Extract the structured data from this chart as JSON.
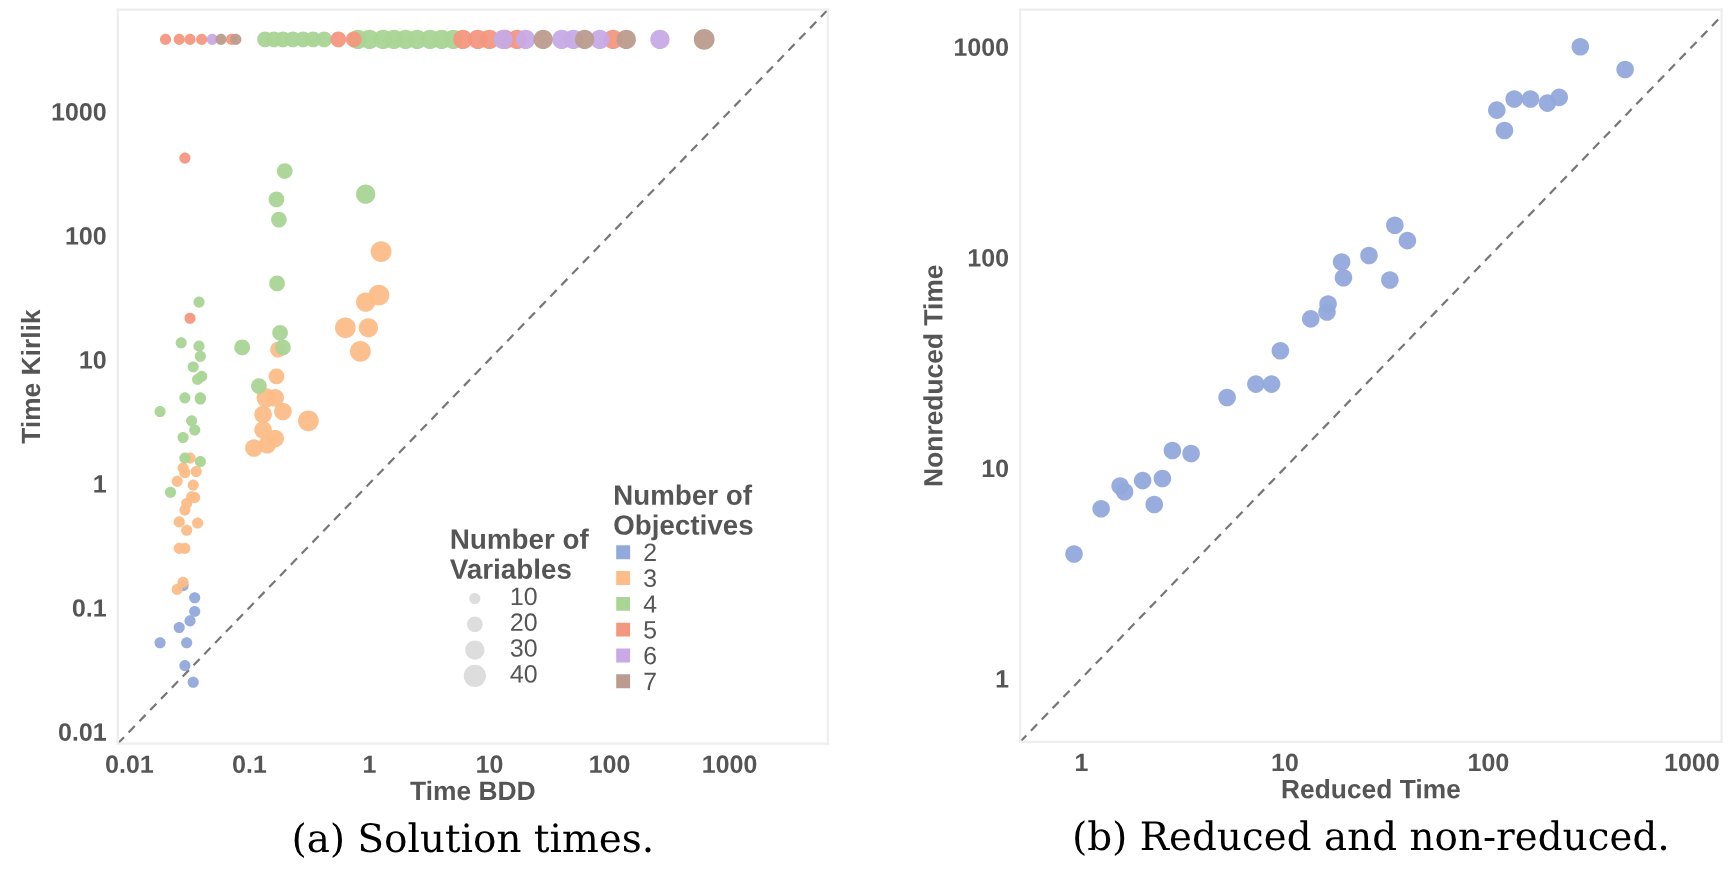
{
  "chart_data": [
    {
      "type": "bubble",
      "title": "(a) Solution times.",
      "xlabel": "Time BDD",
      "ylabel": "Time Kirlik",
      "log": "xy",
      "xlim": [
        0.008,
        6600
      ],
      "ylim": [
        0.008,
        6600
      ],
      "xticks": [
        0.01,
        0.1,
        1,
        10,
        100,
        1000
      ],
      "yticks": [
        0.01,
        0.1,
        1,
        10,
        100,
        1000
      ],
      "marker": "circle",
      "legend": "bottom right",
      "legend_title": "Number of Objectives",
      "size_legend": [
        10,
        20,
        30,
        40
      ],
      "annotations": [
        "Number of Variables"
      ],
      "series": [
        {
          "name": "2",
          "color": "#92a9db",
          "x": [
            0.018,
            0.026,
            0.028,
            0.03,
            0.029,
            0.034,
            0.032,
            0.035,
            0.035
          ],
          "values": [
            0.052,
            0.069,
            0.15,
            0.052,
            0.034,
            0.025,
            0.078,
            0.093,
            0.12
          ],
          "sizes": [
            10,
            10,
            10,
            10,
            10,
            10,
            10,
            10,
            10
          ]
        },
        {
          "name": "3",
          "color": "#fcbd88",
          "x": [
            0.025,
            0.028,
            0.026,
            0.029,
            0.03,
            0.026,
            0.037,
            0.029,
            0.03,
            0.033,
            0.034,
            0.035,
            0.025,
            0.028,
            0.029,
            0.032,
            0.036,
            0.109,
            0.13,
            0.13,
            0.138,
            0.164,
            0.164,
            0.141,
            0.19,
            0.31,
            0.168,
            0.173,
            0.63,
            0.98,
            0.84,
            0.93,
            1.2,
            1.25
          ],
          "values": [
            0.14,
            0.16,
            0.3,
            0.3,
            0.42,
            0.49,
            0.48,
            0.61,
            0.69,
            0.78,
            0.97,
            0.77,
            1.04,
            1.33,
            1.22,
            1.6,
            1.25,
            1.93,
            2.7,
            3.6,
            4.9,
            4.9,
            2.3,
            2.05,
            3.8,
            3.2,
            7.3,
            12,
            18,
            18,
            11.6,
            29,
            33,
            74
          ],
          "sizes": [
            10,
            10,
            10,
            10,
            10,
            10,
            10,
            10,
            10,
            10,
            10,
            10,
            10,
            10,
            10,
            10,
            10,
            25,
            25,
            25,
            30,
            25,
            25,
            25,
            25,
            35,
            20,
            20,
            35,
            30,
            35,
            30,
            35,
            35
          ]
        },
        {
          "name": "4",
          "color": "#a9d595",
          "x": [
            0.038,
            0.027,
            0.038,
            0.039,
            0.034,
            0.04,
            0.037,
            0.029,
            0.039,
            0.039,
            0.018,
            0.033,
            0.035,
            0.028,
            0.029,
            0.039,
            0.022,
            0.087,
            0.12,
            0.17,
            0.18,
            0.19,
            0.176,
            0.168,
            0.197,
            0.93,
            0.135,
            0.16,
            0.19,
            0.23,
            0.28,
            0.34,
            0.42,
            0.8,
            1.0,
            1.3,
            1.6,
            2.0,
            2.5,
            3.2,
            4.0,
            5.0
          ],
          "values": [
            29,
            13.6,
            12.8,
            10.6,
            8.7,
            7.3,
            6.9,
            4.9,
            4.9,
            4.8,
            3.8,
            3.2,
            2.7,
            2.35,
            1.6,
            1.5,
            0.85,
            12.5,
            6.1,
            41,
            16.4,
            12.5,
            134,
            195,
            330,
            215,
            3800,
            3800,
            3800,
            3800,
            3800,
            3800,
            3800,
            3800,
            3800,
            3800,
            3800,
            3800,
            3800,
            3800,
            3800,
            3800
          ],
          "sizes": [
            10,
            10,
            10,
            10,
            10,
            10,
            10,
            10,
            10,
            10,
            10,
            10,
            10,
            10,
            10,
            10,
            10,
            20,
            20,
            20,
            20,
            20,
            20,
            20,
            20,
            30,
            20,
            20,
            20,
            20,
            20,
            20,
            20,
            30,
            30,
            30,
            30,
            30,
            30,
            30,
            30,
            30
          ]
        },
        {
          "name": "5",
          "color": "#f3977f",
          "x": [
            0.029,
            0.032,
            0.02,
            0.026,
            0.032,
            0.04,
            0.071,
            0.55,
            0.74,
            6.0,
            8.0,
            10,
            13.5,
            17,
            107
          ],
          "values": [
            420,
            21.5,
            3800,
            3800,
            3800,
            3800,
            3800,
            3800,
            3800,
            3800,
            3800,
            3800,
            3800,
            3800,
            3800
          ],
          "sizes": [
            10,
            10,
            10,
            10,
            10,
            10,
            10,
            20,
            20,
            30,
            30,
            30,
            30,
            30,
            30
          ]
        },
        {
          "name": "6",
          "color": "#c7aae6",
          "x": [
            0.049,
            13,
            20,
            40,
            50,
            83,
            263
          ],
          "values": [
            3800,
            3800,
            3800,
            3800,
            3800,
            3800,
            3800
          ],
          "sizes": [
            10,
            30,
            30,
            30,
            30,
            30,
            30
          ]
        },
        {
          "name": "7",
          "color": "#bc9c8e",
          "x": [
            0.058,
            0.077,
            28,
            62,
            138,
            615
          ],
          "values": [
            3800,
            3800,
            3800,
            3800,
            3800,
            3800
          ],
          "sizes": [
            10,
            10,
            30,
            30,
            30,
            35
          ]
        },
        {
          "type": "line",
          "marker": "none",
          "color": "#777777",
          "line_style": "dashed",
          "x": [
            0.008,
            6600
          ],
          "values": [
            0.008,
            6600
          ]
        }
      ]
    },
    {
      "type": "scatter",
      "title": "(b) Reduced and non-reduced.",
      "xlabel": "Reduced Time",
      "ylabel": "Nonreduced Time",
      "log": "xy",
      "xlim": [
        0.5,
        1400
      ],
      "ylim": [
        0.5,
        1500
      ],
      "xticks": [
        1,
        10,
        100,
        1000
      ],
      "yticks": [
        1,
        10,
        100,
        1000
      ],
      "marker": "circle",
      "series": [
        {
          "color": "#92a9db",
          "x": [
            0.92,
            1.25,
            1.55,
            1.63,
            2.0,
            2.28,
            2.5,
            2.8,
            3.46,
            5.2,
            7.2,
            8.6,
            9.5,
            13.4,
            16.1,
            16.3,
            19,
            19.4,
            25.9,
            32.8,
            34.7,
            40,
            110,
            120,
            134,
            161,
            195,
            223,
            283,
            470
          ],
          "values": [
            3.9,
            6.4,
            8.2,
            7.7,
            8.7,
            6.7,
            8.9,
            12.1,
            11.7,
            21.6,
            25,
            25,
            36,
            51,
            55,
            60,
            95,
            80,
            102,
            78,
            142,
            120,
            500,
            400,
            565,
            565,
            540,
            575,
            1000,
            780
          ]
        },
        {
          "type": "line",
          "marker": "none",
          "color": "#777777",
          "line_style": "dashed",
          "x": [
            0.5,
            1400
          ],
          "values": [
            0.5,
            1400
          ]
        }
      ]
    }
  ]
}
